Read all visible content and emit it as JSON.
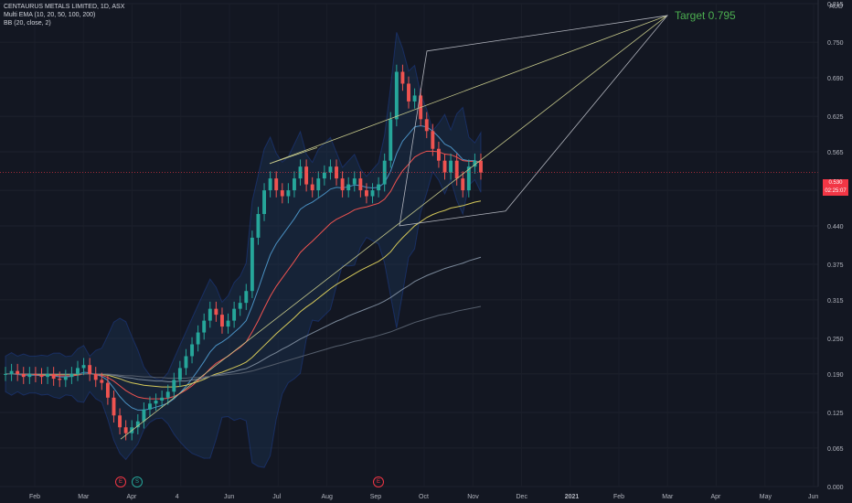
{
  "header": {
    "title": "CENTAURUS METALS LIMITED, 1D, ASX",
    "ema": "Multi EMA (10, 20, 50, 100, 200)",
    "bb": "BB (20, close, 2)"
  },
  "currency": "AUD",
  "last_price": "0.530",
  "countdown": "02:25:07",
  "target_label": "Target 0.795",
  "events": [
    "E",
    "S",
    "E"
  ],
  "colors": {
    "background": "#131722",
    "up": "#26a69a",
    "down": "#ef5350",
    "bb_fill": "#1e3a5f",
    "target_text": "#4caf50",
    "trendline": "#c5c88a",
    "triangle": "#b2b5be"
  },
  "chart_data": {
    "type": "candlestick",
    "title": "CENTAURUS METALS LIMITED, 1D, ASX",
    "y_ticks": [
      "0.000",
      "0.065",
      "0.125",
      "0.190",
      "0.250",
      "0.315",
      "0.375",
      "0.440",
      "0.500",
      "0.565",
      "0.625",
      "0.690",
      "0.750",
      "0.815"
    ],
    "x_ticks": [
      "Feb",
      "Mar",
      "Apr",
      "4",
      "Jun",
      "Jul",
      "Aug",
      "Sep",
      "Oct",
      "Nov",
      "Dec",
      "2021",
      "Feb",
      "Mar",
      "Apr",
      "May",
      "Jun"
    ],
    "ylim": [
      0,
      0.815
    ],
    "series": [
      {
        "name": "price",
        "values": [
          0.19,
          0.195,
          0.19,
          0.185,
          0.19,
          0.188,
          0.185,
          0.19,
          0.182,
          0.18,
          0.185,
          0.19,
          0.2,
          0.205,
          0.19,
          0.18,
          0.175,
          0.15,
          0.12,
          0.1,
          0.09,
          0.1,
          0.11,
          0.13,
          0.14,
          0.145,
          0.15,
          0.16,
          0.18,
          0.2,
          0.22,
          0.24,
          0.26,
          0.28,
          0.3,
          0.29,
          0.27,
          0.28,
          0.3,
          0.31,
          0.33,
          0.42,
          0.46,
          0.5,
          0.52,
          0.5,
          0.49,
          0.5,
          0.52,
          0.54,
          0.51,
          0.5,
          0.52,
          0.53,
          0.54,
          0.52,
          0.5,
          0.51,
          0.52,
          0.5,
          0.49,
          0.5,
          0.51,
          0.55,
          0.62,
          0.7,
          0.68,
          0.65,
          0.66,
          0.62,
          0.6,
          0.57,
          0.55,
          0.53,
          0.55,
          0.52,
          0.5,
          0.54,
          0.55,
          0.53
        ]
      },
      {
        "name": "EMA 10",
        "values": [
          0.19,
          0.19,
          0.189,
          0.188,
          0.188,
          0.188,
          0.187,
          0.188,
          0.187,
          0.185,
          0.185,
          0.186,
          0.189,
          0.193,
          0.192,
          0.189,
          0.186,
          0.179,
          0.166,
          0.152,
          0.141,
          0.133,
          0.129,
          0.129,
          0.131,
          0.134,
          0.137,
          0.141,
          0.148,
          0.158,
          0.169,
          0.182,
          0.196,
          0.211,
          0.227,
          0.238,
          0.244,
          0.251,
          0.26,
          0.269,
          0.28,
          0.305,
          0.333,
          0.363,
          0.391,
          0.41,
          0.424,
          0.438,
          0.452,
          0.468,
          0.475,
          0.48,
          0.487,
          0.494,
          0.502,
          0.505,
          0.504,
          0.506,
          0.509,
          0.508,
          0.505,
          0.504,
          0.505,
          0.513,
          0.532,
          0.562,
          0.583,
          0.595,
          0.607,
          0.609,
          0.607,
          0.6,
          0.59,
          0.578,
          0.573,
          0.563,
          0.552,
          0.55,
          0.55,
          0.546
        ]
      },
      {
        "name": "EMA 20",
        "values": [
          0.19,
          0.19,
          0.19,
          0.189,
          0.189,
          0.189,
          0.188,
          0.188,
          0.188,
          0.187,
          0.187,
          0.187,
          0.188,
          0.19,
          0.19,
          0.189,
          0.188,
          0.184,
          0.178,
          0.17,
          0.162,
          0.156,
          0.151,
          0.149,
          0.148,
          0.148,
          0.148,
          0.149,
          0.152,
          0.157,
          0.163,
          0.17,
          0.179,
          0.188,
          0.199,
          0.208,
          0.214,
          0.22,
          0.228,
          0.235,
          0.244,
          0.261,
          0.28,
          0.301,
          0.321,
          0.338,
          0.352,
          0.366,
          0.38,
          0.395,
          0.405,
          0.414,
          0.424,
          0.434,
          0.444,
          0.451,
          0.456,
          0.461,
          0.467,
          0.47,
          0.472,
          0.475,
          0.478,
          0.485,
          0.498,
          0.517,
          0.533,
          0.544,
          0.556,
          0.562,
          0.566,
          0.566,
          0.565,
          0.561,
          0.56,
          0.556,
          0.55,
          0.549,
          0.549,
          0.547
        ]
      },
      {
        "name": "EMA 50",
        "values": [
          0.19,
          0.19,
          0.19,
          0.19,
          0.19,
          0.189,
          0.189,
          0.189,
          0.189,
          0.189,
          0.189,
          0.189,
          0.189,
          0.19,
          0.19,
          0.19,
          0.189,
          0.188,
          0.185,
          0.182,
          0.178,
          0.175,
          0.173,
          0.171,
          0.17,
          0.169,
          0.168,
          0.168,
          0.168,
          0.169,
          0.171,
          0.174,
          0.177,
          0.181,
          0.186,
          0.19,
          0.193,
          0.197,
          0.201,
          0.205,
          0.21,
          0.218,
          0.228,
          0.238,
          0.248,
          0.258,
          0.267,
          0.276,
          0.285,
          0.295,
          0.303,
          0.31,
          0.318,
          0.326,
          0.334,
          0.341,
          0.347,
          0.353,
          0.359,
          0.365,
          0.37,
          0.375,
          0.38,
          0.387,
          0.396,
          0.409,
          0.42,
          0.43,
          0.44,
          0.447,
          0.454,
          0.459,
          0.463,
          0.466,
          0.47,
          0.472,
          0.474,
          0.477,
          0.48,
          0.482
        ]
      },
      {
        "name": "EMA 100",
        "values": [
          0.19,
          0.19,
          0.19,
          0.19,
          0.19,
          0.19,
          0.19,
          0.19,
          0.19,
          0.19,
          0.19,
          0.19,
          0.19,
          0.19,
          0.19,
          0.19,
          0.19,
          0.189,
          0.188,
          0.186,
          0.184,
          0.183,
          0.181,
          0.18,
          0.179,
          0.178,
          0.178,
          0.177,
          0.177,
          0.178,
          0.178,
          0.18,
          0.181,
          0.183,
          0.186,
          0.188,
          0.19,
          0.192,
          0.194,
          0.197,
          0.199,
          0.204,
          0.209,
          0.215,
          0.221,
          0.226,
          0.232,
          0.237,
          0.243,
          0.249,
          0.254,
          0.259,
          0.264,
          0.269,
          0.274,
          0.279,
          0.283,
          0.288,
          0.292,
          0.296,
          0.3,
          0.304,
          0.308,
          0.313,
          0.319,
          0.326,
          0.333,
          0.339,
          0.346,
          0.351,
          0.356,
          0.36,
          0.364,
          0.368,
          0.371,
          0.374,
          0.377,
          0.381,
          0.384,
          0.387
        ]
      },
      {
        "name": "EMA 200",
        "values": [
          0.19,
          0.19,
          0.19,
          0.19,
          0.19,
          0.19,
          0.19,
          0.19,
          0.19,
          0.19,
          0.19,
          0.19,
          0.19,
          0.19,
          0.19,
          0.19,
          0.19,
          0.19,
          0.189,
          0.188,
          0.187,
          0.187,
          0.186,
          0.185,
          0.185,
          0.184,
          0.184,
          0.183,
          0.183,
          0.183,
          0.183,
          0.184,
          0.184,
          0.185,
          0.186,
          0.187,
          0.188,
          0.189,
          0.19,
          0.191,
          0.193,
          0.195,
          0.198,
          0.201,
          0.204,
          0.207,
          0.21,
          0.213,
          0.216,
          0.219,
          0.222,
          0.225,
          0.228,
          0.231,
          0.234,
          0.237,
          0.239,
          0.242,
          0.245,
          0.247,
          0.25,
          0.252,
          0.255,
          0.258,
          0.261,
          0.265,
          0.269,
          0.273,
          0.277,
          0.28,
          0.283,
          0.286,
          0.289,
          0.291,
          0.293,
          0.296,
          0.298,
          0.3,
          0.302,
          0.304
        ]
      }
    ],
    "target": 0.795
  }
}
